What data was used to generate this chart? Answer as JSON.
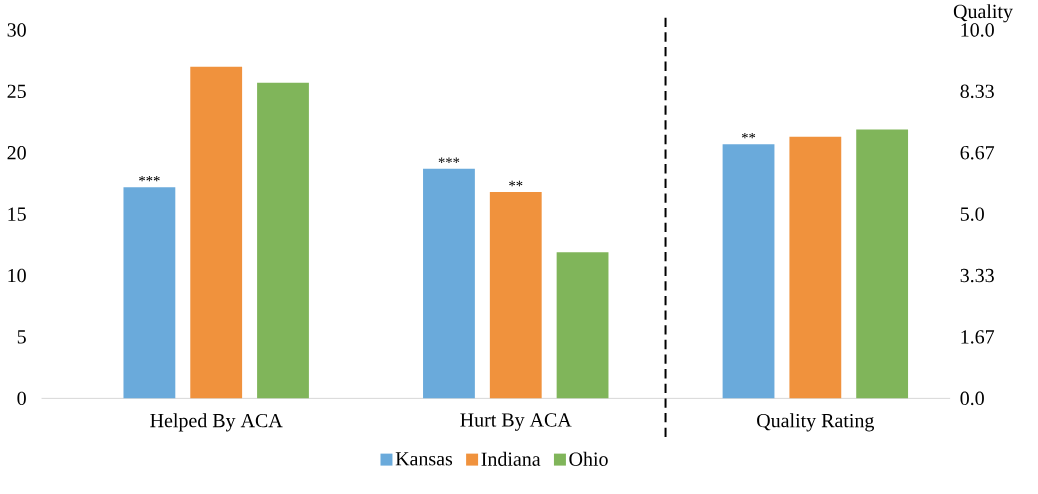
{
  "chart_data": {
    "type": "bar",
    "categories": [
      "Helped By ACA",
      "Hurt By ACA",
      "Quality Rating"
    ],
    "series": [
      {
        "name": "Kansas",
        "color": "#6aaadb",
        "values": [
          17.2,
          18.7,
          null
        ],
        "value_labels": [
          "***",
          "***",
          null
        ]
      },
      {
        "name": "Indiana",
        "color": "#f0923d",
        "values": [
          27.0,
          16.8,
          null
        ],
        "value_labels": [
          null,
          "**",
          null
        ]
      },
      {
        "name": "Ohio",
        "color": "#80b55a",
        "values": [
          25.7,
          11.9,
          null
        ]
      },
      {
        "color": "#6aaadb",
        "values": [
          null,
          null,
          6.9
        ],
        "axis": "y2",
        "value_labels": [
          null,
          null,
          "**"
        ]
      },
      {
        "color": "#f0923d",
        "values": [
          null,
          null,
          7.1
        ],
        "axis": "y2"
      },
      {
        "color": "#80b55a",
        "values": [
          null,
          null,
          7.3
        ],
        "axis": "y2"
      }
    ],
    "ylim": [
      0,
      30
    ],
    "yticks": [
      0,
      5,
      10,
      15,
      20,
      25,
      30
    ],
    "y2label": "Quality",
    "y2lim": [
      0,
      10
    ],
    "y2ticks": [
      {
        "value": 0,
        "label": "0.0"
      },
      {
        "value": 1.6667,
        "label": "1.67"
      },
      {
        "value": 3.3333,
        "label": "3.33"
      },
      {
        "value": 5,
        "label": "5.0"
      },
      {
        "value": 6.6667,
        "label": "6.67"
      },
      {
        "value": 8.3333,
        "label": "8.33"
      },
      {
        "value": 10,
        "label": "10.0"
      }
    ],
    "legend": "bottom",
    "grid": false
  }
}
